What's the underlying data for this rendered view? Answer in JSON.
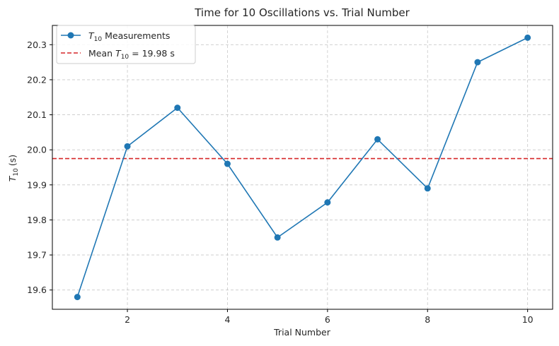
{
  "chart_data": {
    "type": "line",
    "title": "Time for 10 Oscillations vs. Trial Number",
    "xlabel": "Trial Number",
    "ylabel_main": "T",
    "ylabel_sub": "10",
    "ylabel_unit": "(s)",
    "x": [
      1,
      2,
      3,
      4,
      5,
      6,
      7,
      8,
      9,
      10
    ],
    "series": [
      {
        "name_main": "T",
        "name_sub": "10",
        "name_rest": "Measurements",
        "values": [
          19.58,
          20.01,
          20.12,
          19.96,
          19.75,
          19.85,
          20.03,
          19.89,
          20.25,
          20.32
        ],
        "color": "#1f77b4",
        "marker": "circle",
        "line_style": "solid"
      }
    ],
    "reference_line": {
      "label_prefix": "Mean",
      "label_main": "T",
      "label_sub": "10",
      "label_value": "= 19.98 s",
      "value": 19.975,
      "color": "#d62728",
      "line_style": "dashed"
    },
    "xlim": [
      0.5,
      10.5
    ],
    "ylim": [
      19.545,
      20.355
    ],
    "x_ticks": [
      2,
      4,
      6,
      8,
      10
    ],
    "y_ticks": [
      19.6,
      19.7,
      19.8,
      19.9,
      20.0,
      20.1,
      20.2,
      20.3
    ],
    "y_tick_labels": [
      "19.6",
      "19.7",
      "19.8",
      "19.9",
      "20.0",
      "20.1",
      "20.2",
      "20.3"
    ],
    "grid": true,
    "legend_position": "top-left"
  }
}
